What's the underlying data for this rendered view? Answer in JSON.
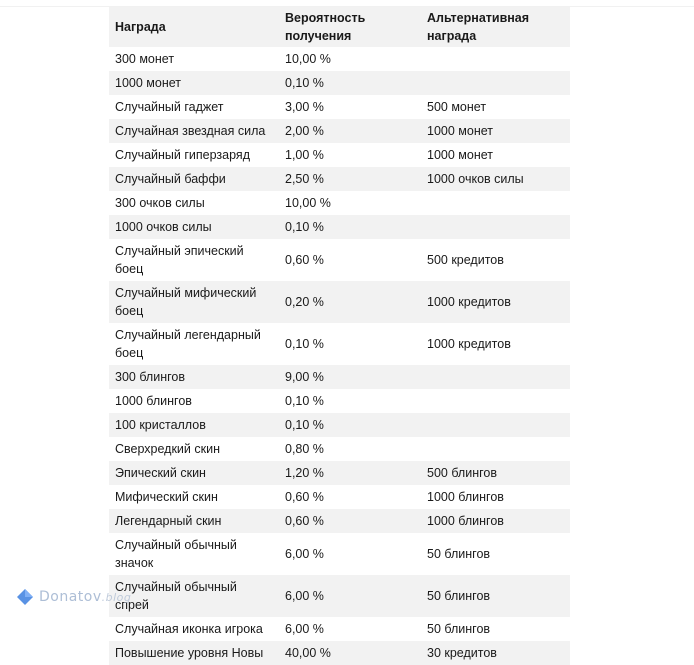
{
  "table": {
    "headers": {
      "reward": "Награда",
      "probability": "Вероятность получения",
      "alternative": "Альтернативная награда"
    },
    "rows": [
      {
        "reward": "300 монет",
        "probability": "10,00 %",
        "alternative": ""
      },
      {
        "reward": "1000 монет",
        "probability": "0,10 %",
        "alternative": ""
      },
      {
        "reward": "Случайный гаджет",
        "probability": "3,00 %",
        "alternative": "500 монет"
      },
      {
        "reward": "Случайная звездная сила",
        "probability": "2,00 %",
        "alternative": "1000 монет"
      },
      {
        "reward": "Случайный гиперзаряд",
        "probability": "1,00 %",
        "alternative": "1000 монет"
      },
      {
        "reward": "Случайный баффи",
        "probability": "2,50 %",
        "alternative": "1000 очков силы"
      },
      {
        "reward": "300 очков силы",
        "probability": "10,00 %",
        "alternative": ""
      },
      {
        "reward": "1000 очков силы",
        "probability": "0,10 %",
        "alternative": ""
      },
      {
        "reward": "Случайный эпический боец",
        "probability": "0,60 %",
        "alternative": "500 кредитов"
      },
      {
        "reward": "Случайный мифический боец",
        "probability": "0,20 %",
        "alternative": "1000 кредитов"
      },
      {
        "reward": "Случайный легендарный боец",
        "probability": "0,10 %",
        "alternative": "1000 кредитов"
      },
      {
        "reward": "300 блингов",
        "probability": "9,00 %",
        "alternative": ""
      },
      {
        "reward": "1000 блингов",
        "probability": "0,10 %",
        "alternative": ""
      },
      {
        "reward": "100 кристаллов",
        "probability": "0,10 %",
        "alternative": ""
      },
      {
        "reward": "Сверхредкий скин",
        "probability": "0,80 %",
        "alternative": ""
      },
      {
        "reward": "Эпический скин",
        "probability": "1,20 %",
        "alternative": "500 блингов"
      },
      {
        "reward": "Мифический скин",
        "probability": "0,60 %",
        "alternative": "1000 блингов"
      },
      {
        "reward": "Легендарный скин",
        "probability": "0,60 %",
        "alternative": "1000 блингов"
      },
      {
        "reward": "Случайный обычный значок",
        "probability": "6,00 %",
        "alternative": "50 блингов"
      },
      {
        "reward": "Случайный обычный спрей",
        "probability": "6,00 %",
        "alternative": "50 блингов"
      },
      {
        "reward": "Случайная иконка игрока",
        "probability": "6,00 %",
        "alternative": "50 блингов"
      },
      {
        "reward": "Повышение уровня Новы",
        "probability": "40,00 %",
        "alternative": "30 кредитов"
      }
    ]
  },
  "watermark": {
    "name": "Donatov",
    "suffix": ".blog",
    "icon": "blue-diamond-logo-icon"
  },
  "colors": {
    "stripe": "#f2f2f2",
    "text": "#1a1a1a",
    "watermark": "#9fb3cf",
    "logo": "#3d7fe0"
  }
}
